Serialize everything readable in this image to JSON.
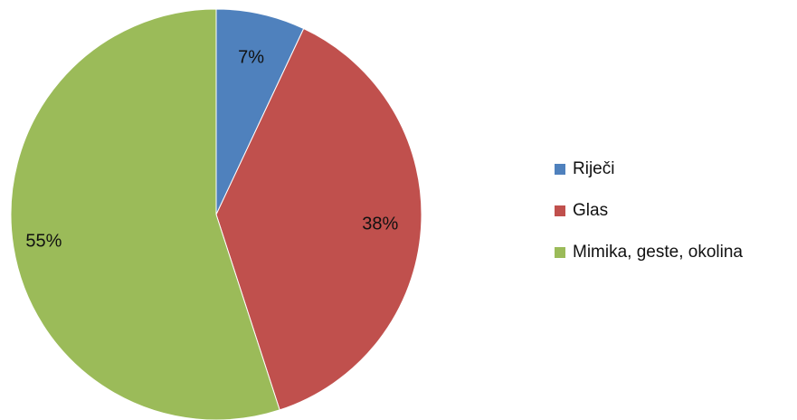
{
  "chart_data": {
    "type": "pie",
    "title": "",
    "legend": "right",
    "slices": [
      {
        "label": "Riječi",
        "value": 7,
        "display": "7%",
        "color": "#4F81BD"
      },
      {
        "label": "Glas",
        "value": 38,
        "display": "38%",
        "color": "#C0504D"
      },
      {
        "label": "Mimika, geste, okolina",
        "value": 55,
        "display": "55%",
        "color": "#9BBB59"
      }
    ]
  }
}
